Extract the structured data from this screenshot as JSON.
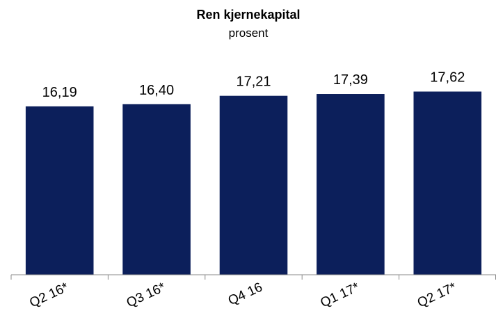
{
  "chart_data": {
    "type": "bar",
    "title": "Ren kjernekapital",
    "subtitle": "prosent",
    "categories": [
      "Q2 16*",
      "Q3 16*",
      "Q4 16",
      "Q1 17*",
      "Q2 17*"
    ],
    "values": [
      16.19,
      16.4,
      17.21,
      17.39,
      17.62
    ],
    "value_labels": [
      "16,19",
      "16,40",
      "17,21",
      "17,39",
      "17,62"
    ],
    "color": "#0c1f5b",
    "ylim": [
      0,
      20
    ]
  }
}
